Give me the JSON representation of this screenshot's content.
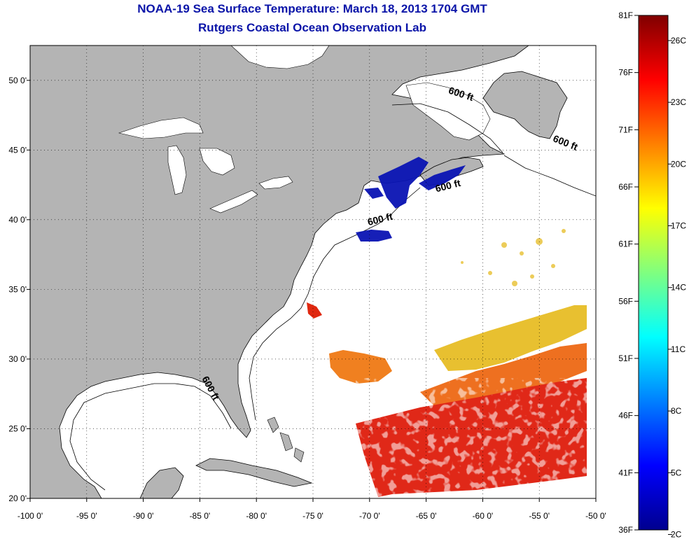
{
  "title": "NOAA-19 Sea Surface Temperature:  March 18, 2013 1704 GMT",
  "subtitle": "Rutgers Coastal Ocean Observation Lab",
  "map": {
    "lon_range": [
      -100,
      -50
    ],
    "lat_range": [
      20,
      52.5
    ],
    "lon_ticks": [
      -100,
      -95,
      -90,
      -85,
      -80,
      -75,
      -70,
      -65,
      -60,
      -55,
      -50
    ],
    "lon_labels": [
      "-100 0'",
      "-95 0'",
      "-90 0'",
      "-85 0'",
      "-80 0'",
      "-75 0'",
      "-70 0'",
      "-65 0'",
      "-60 0'",
      "-55 0'",
      "-50 0'"
    ],
    "lat_ticks": [
      20,
      25,
      30,
      35,
      40,
      45,
      50
    ],
    "lat_labels": [
      "20 0'",
      "25 0'",
      "30 0'",
      "35 0'",
      "40 0'",
      "45 0'",
      "50 0'"
    ],
    "grid": "dotted",
    "isobath_label": "600 ft",
    "isobath_annotations": [
      {
        "lon": -62.0,
        "lat": 48.8,
        "text": "600 ft"
      },
      {
        "lon": -52.8,
        "lat": 45.3,
        "text": "600 ft"
      },
      {
        "lon": -63.0,
        "lat": 42.2,
        "text": "600 ft"
      },
      {
        "lon": -69.0,
        "lat": 39.8,
        "text": "600 ft"
      },
      {
        "lon": -84.3,
        "lat": 27.8,
        "text": "600 ft"
      }
    ],
    "land_color": "#b4b4b4",
    "water_color": "#ffffff"
  },
  "colorbar": {
    "f_labels": [
      "81F",
      "76F",
      "71F",
      "66F",
      "61F",
      "56F",
      "51F",
      "46F",
      "41F",
      "36F"
    ],
    "c_labels": [
      "26C",
      "23C",
      "20C",
      "17C",
      "14C",
      "11C",
      "8C",
      "5C",
      "2C"
    ],
    "f_range": [
      36,
      81
    ],
    "colors": [
      "#00008f",
      "#0000ff",
      "#00ffff",
      "#ffff00",
      "#ff0000",
      "#800000"
    ]
  }
}
